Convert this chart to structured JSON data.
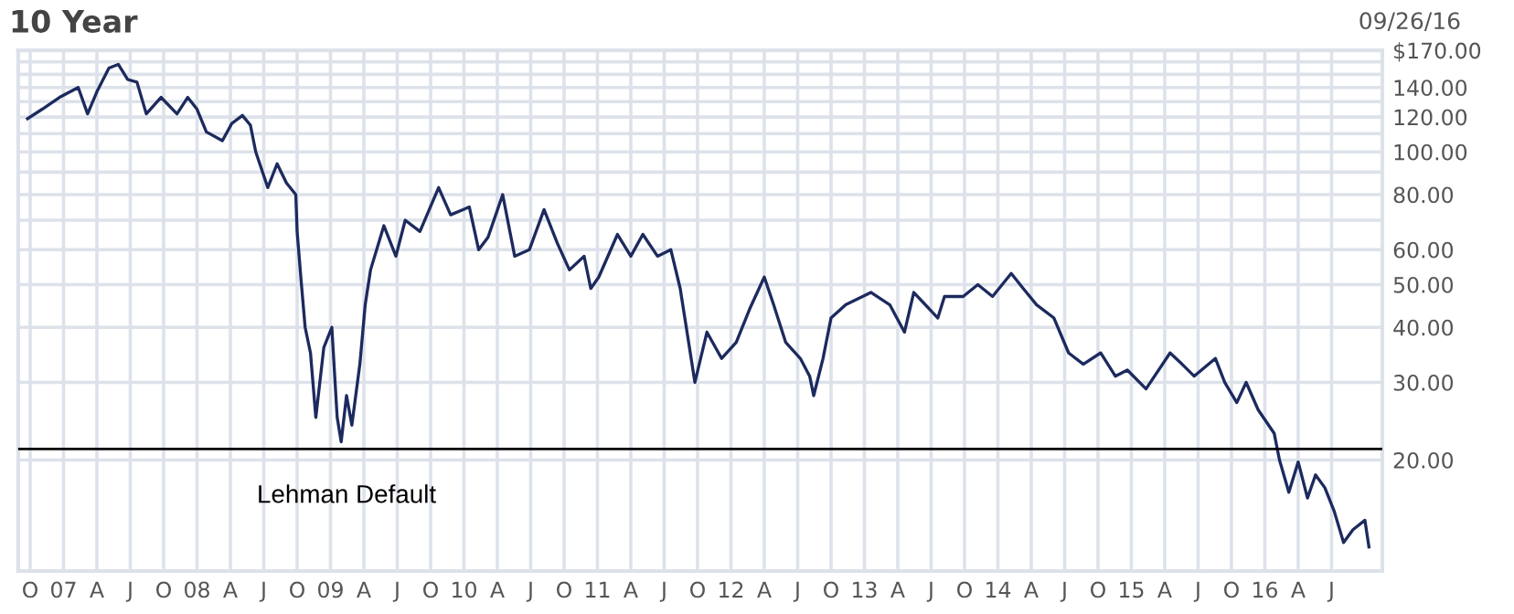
{
  "chart_data": {
    "type": "line",
    "title": "10 Year",
    "subtitle": "09/26/16",
    "x": [
      2006.73,
      2006.84,
      2006.97,
      2007.11,
      2007.18,
      2007.25,
      2007.34,
      2007.41,
      2007.48,
      2007.55,
      2007.62,
      2007.73,
      2007.85,
      2007.93,
      2008.0,
      2008.07,
      2008.19,
      2008.26,
      2008.34,
      2008.4,
      2008.44,
      2008.53,
      2008.6,
      2008.67,
      2008.74,
      2008.75,
      2008.78,
      2008.81,
      2008.85,
      2008.89,
      2008.95,
      2009.01,
      2009.05,
      2009.08,
      2009.12,
      2009.16,
      2009.22,
      2009.26,
      2009.3,
      2009.4,
      2009.49,
      2009.56,
      2009.67,
      2009.81,
      2009.9,
      2010.04,
      2010.11,
      2010.18,
      2010.29,
      2010.38,
      2010.49,
      2010.6,
      2010.7,
      2010.79,
      2010.9,
      2010.95,
      2011.01,
      2011.15,
      2011.25,
      2011.34,
      2011.45,
      2011.55,
      2011.62,
      2011.66,
      2011.73,
      2011.82,
      2011.93,
      2012.04,
      2012.14,
      2012.25,
      2012.32,
      2012.41,
      2012.52,
      2012.59,
      2012.62,
      2012.69,
      2012.75,
      2012.86,
      2013.05,
      2013.19,
      2013.3,
      2013.37,
      2013.55,
      2013.6,
      2013.74,
      2013.85,
      2013.96,
      2014.1,
      2014.19,
      2014.29,
      2014.42,
      2014.53,
      2014.64,
      2014.77,
      2014.88,
      2014.97,
      2015.11,
      2015.29,
      2015.38,
      2015.47,
      2015.63,
      2015.7,
      2015.79,
      2015.86,
      2015.95,
      2016.07,
      2016.11,
      2016.18,
      2016.25,
      2016.32,
      2016.38,
      2016.45,
      2016.52,
      2016.59,
      2016.66,
      2016.75,
      2016.78
    ],
    "series": [
      {
        "color": "#1c2a5e",
        "values": [
          119,
          125,
          133,
          140,
          122,
          137,
          155,
          158,
          146,
          144,
          122,
          133,
          122,
          133,
          125,
          111,
          106,
          116,
          121,
          115,
          100,
          83,
          94,
          85,
          80,
          66,
          51,
          40,
          35,
          25,
          36,
          40,
          25,
          22,
          28,
          24,
          33,
          45,
          54,
          68,
          58,
          70,
          66,
          83,
          72,
          75,
          60,
          64,
          80,
          58,
          60,
          74,
          62,
          54,
          58,
          49,
          52,
          65,
          58,
          65,
          58,
          60,
          49,
          41,
          30,
          39,
          34,
          37,
          44,
          52,
          45,
          37,
          34,
          31,
          28,
          34,
          42,
          45,
          48,
          45,
          39,
          48,
          42,
          47,
          47,
          50,
          47,
          53,
          49,
          45,
          42,
          35,
          33,
          35,
          31,
          32,
          29,
          35,
          33,
          31,
          34,
          30,
          27,
          30,
          26,
          23,
          20,
          16.9,
          19.8,
          16.4,
          18.5,
          17.3,
          15.3,
          13.0,
          13.9,
          14.6,
          12.7
        ]
      }
    ],
    "log": true,
    "xlim": [
      2006.66,
      2016.88
    ],
    "xticks": [
      {
        "value": 2006.75,
        "label": "O"
      },
      {
        "value": 2007.0,
        "label": "07"
      },
      {
        "value": 2007.25,
        "label": "A"
      },
      {
        "value": 2007.5,
        "label": "J"
      },
      {
        "value": 2007.75,
        "label": "O"
      },
      {
        "value": 2008.0,
        "label": "08"
      },
      {
        "value": 2008.25,
        "label": "A"
      },
      {
        "value": 2008.5,
        "label": "J"
      },
      {
        "value": 2008.75,
        "label": "O"
      },
      {
        "value": 2009.0,
        "label": "09"
      },
      {
        "value": 2009.25,
        "label": "A"
      },
      {
        "value": 2009.5,
        "label": "J"
      },
      {
        "value": 2009.75,
        "label": "O"
      },
      {
        "value": 2010.0,
        "label": "10"
      },
      {
        "value": 2010.25,
        "label": "A"
      },
      {
        "value": 2010.5,
        "label": "J"
      },
      {
        "value": 2010.75,
        "label": "O"
      },
      {
        "value": 2011.0,
        "label": "11"
      },
      {
        "value": 2011.25,
        "label": "A"
      },
      {
        "value": 2011.5,
        "label": "J"
      },
      {
        "value": 2011.75,
        "label": "O"
      },
      {
        "value": 2012.0,
        "label": "12"
      },
      {
        "value": 2012.25,
        "label": "A"
      },
      {
        "value": 2012.5,
        "label": "J"
      },
      {
        "value": 2012.75,
        "label": "O"
      },
      {
        "value": 2013.0,
        "label": "13"
      },
      {
        "value": 2013.25,
        "label": "A"
      },
      {
        "value": 2013.5,
        "label": "J"
      },
      {
        "value": 2013.75,
        "label": "O"
      },
      {
        "value": 2014.0,
        "label": "14"
      },
      {
        "value": 2014.25,
        "label": "A"
      },
      {
        "value": 2014.5,
        "label": "J"
      },
      {
        "value": 2014.75,
        "label": "O"
      },
      {
        "value": 2015.0,
        "label": "15"
      },
      {
        "value": 2015.25,
        "label": "A"
      },
      {
        "value": 2015.5,
        "label": "J"
      },
      {
        "value": 2015.75,
        "label": "O"
      },
      {
        "value": 2016.0,
        "label": "16"
      },
      {
        "value": 2016.25,
        "label": "A"
      },
      {
        "value": 2016.5,
        "label": "J"
      }
    ],
    "ylim": [
      11.2,
      170
    ],
    "yticks": [
      {
        "value": 20,
        "label": "20.00"
      },
      {
        "value": 30,
        "label": "30.00"
      },
      {
        "value": 40,
        "label": "40.00"
      },
      {
        "value": 50,
        "label": "50.00"
      },
      {
        "value": 60,
        "label": "60.00"
      },
      {
        "value": 70,
        "label": null
      },
      {
        "value": 80,
        "label": "80.00"
      },
      {
        "value": 90,
        "label": null
      },
      {
        "value": 100,
        "label": "100.00"
      },
      {
        "value": 110,
        "label": null
      },
      {
        "value": 120,
        "label": "120.00"
      },
      {
        "value": 130,
        "label": null
      },
      {
        "value": 140,
        "label": "140.00"
      },
      {
        "value": 150,
        "label": null
      },
      {
        "value": 160,
        "label": null
      },
      {
        "value": 170,
        "label": "$170.00"
      }
    ],
    "ref_lines": [
      {
        "axis": "y",
        "value": 21.2,
        "label": "Lehman Default",
        "color": "#000000"
      }
    ],
    "grid": true,
    "marker": "none",
    "line_style": "solid"
  }
}
